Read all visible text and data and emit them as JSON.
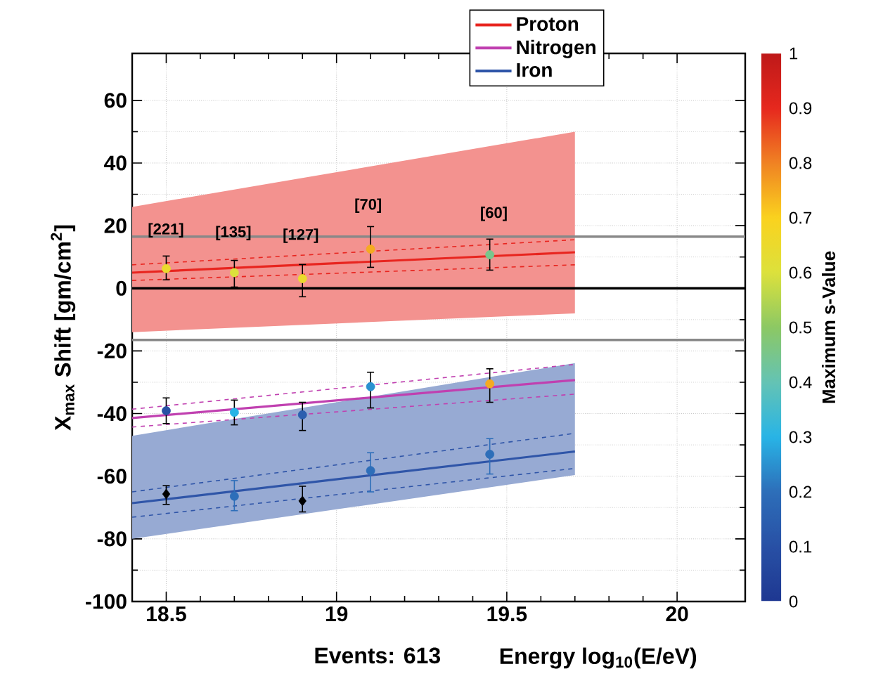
{
  "chart_data": {
    "type": "scatter",
    "xlabel": "Energy  log$_{10}$(E/eV)",
    "ylabel": "X$_{max}$ Shift  [gm/cm$^{2}$]",
    "clabel": "Maximum s-Value",
    "annotations": [
      "Events: 613",
      "[221]",
      "[135]",
      "[127]",
      "[70]",
      "[60]"
    ],
    "xlim": [
      18.4,
      20.2
    ],
    "ylim": [
      -100,
      75
    ],
    "xticks": [
      18.5,
      19,
      19.5,
      20
    ],
    "yticks": [
      -100,
      -80,
      -60,
      -40,
      -20,
      0,
      20,
      40,
      60
    ],
    "clim": [
      0,
      1
    ],
    "cticks": [
      0,
      0.1,
      0.2,
      0.3,
      0.4,
      0.5,
      0.6,
      0.7,
      0.8,
      0.9,
      1
    ],
    "grid": true,
    "legend": "top",
    "ref_lines": [
      {
        "axis": "y",
        "value": 16.5,
        "color": "#888888"
      },
      {
        "axis": "y",
        "value": -16.5,
        "color": "#888888"
      },
      {
        "axis": "y",
        "value": 0,
        "color": "#000000"
      }
    ],
    "series": [
      {
        "type": "line",
        "name": "Proton",
        "color": "#e8251f",
        "x": [
          18.4,
          19.7
        ],
        "values": [
          5,
          11.5
        ],
        "lower": [
          -14,
          -8
        ],
        "upper": [
          26,
          50
        ]
      },
      {
        "type": "line",
        "name": "Nitrogen",
        "color": "#c040b0",
        "x": [
          18.4,
          19.7
        ],
        "values": [
          -41.4,
          -29.3
        ]
      },
      {
        "type": "line",
        "name": "Iron",
        "color": "#2f55a8",
        "x": [
          18.4,
          19.7
        ],
        "values": [
          -68.6,
          -52.1
        ],
        "lower": [
          -80,
          -59.6
        ],
        "upper": [
          -47.1,
          -23.9
        ]
      },
      {
        "type": "line",
        "line_style": "dashed",
        "color": "#e8251f",
        "x": [
          18.4,
          19.7
        ],
        "values": [
          7.5,
          15.5
        ]
      },
      {
        "type": "line",
        "line_style": "dashed",
        "color": "#e8251f",
        "x": [
          18.4,
          19.7
        ],
        "values": [
          2.5,
          7.5
        ]
      },
      {
        "type": "line",
        "line_style": "dashed",
        "color": "#c040b0",
        "x": [
          18.4,
          19.7
        ],
        "values": [
          -38.6,
          -24.3
        ]
      },
      {
        "type": "line",
        "line_style": "dashed",
        "color": "#c040b0",
        "x": [
          18.4,
          19.7
        ],
        "values": [
          -44.3,
          -33.8
        ]
      },
      {
        "type": "line",
        "line_style": "dashed",
        "color": "#2f55a8",
        "x": [
          18.4,
          19.7
        ],
        "values": [
          -65,
          -46.3
        ]
      },
      {
        "type": "line",
        "line_style": "dashed",
        "color": "#2f55a8",
        "x": [
          18.4,
          19.7
        ],
        "values": [
          -73.1,
          -57.5
        ]
      },
      {
        "marker": "circle",
        "x": [
          18.5,
          18.7,
          18.9,
          19.1,
          19.45
        ],
        "values": [
          6.3,
          5,
          3.1,
          12.5,
          10.7
        ],
        "errors": [
          [
            2.7,
            10.3
          ],
          [
            0.4,
            8.9
          ],
          [
            -2.7,
            7.6
          ],
          [
            6.7,
            19.7
          ],
          [
            5.8,
            15.7
          ]
        ],
        "cvalues": [
          0.65,
          0.6,
          0.65,
          0.75,
          0.45
        ],
        "colors": [
          "#ebda2d",
          "#dce13c",
          "#ebda2d",
          "#f5aa21",
          "#78c68c"
        ]
      },
      {
        "marker": "circle",
        "x": [
          18.5,
          18.7,
          18.9,
          19.1,
          19.45
        ],
        "values": [
          -39.1,
          -39.6,
          -40.4,
          -31.4,
          -30.5
        ],
        "errors": [
          [
            -43.2,
            -35
          ],
          [
            -43.6,
            -35.7
          ],
          [
            -45.4,
            -36.4
          ],
          [
            -38.2,
            -26.8
          ],
          [
            -36.4,
            -25.7
          ]
        ],
        "cvalues": [
          0.1,
          0.3,
          0.15,
          0.25,
          0.75
        ],
        "colors": [
          "#2850a5",
          "#28b4e6",
          "#2b5faf",
          "#2b91d0",
          "#f5aa21"
        ]
      },
      {
        "marker": "circle",
        "x": [
          18.7,
          19.1,
          19.45
        ],
        "values": [
          -66.4,
          -58.2,
          -53
        ],
        "errors": [
          [
            -71,
            -61.4
          ],
          [
            -65,
            -52.5
          ],
          [
            -59.3,
            -48
          ]
        ],
        "cvalues": [
          0.2,
          0.2,
          0.2
        ],
        "color": "#2d6eb9"
      },
      {
        "marker": "diamond",
        "color": "#000000",
        "x": [
          18.5,
          18.9
        ],
        "values": [
          -65.7,
          -67.9
        ],
        "errors": [
          [
            -69,
            -63
          ],
          [
            -71.4,
            -63.2
          ]
        ]
      }
    ]
  }
}
